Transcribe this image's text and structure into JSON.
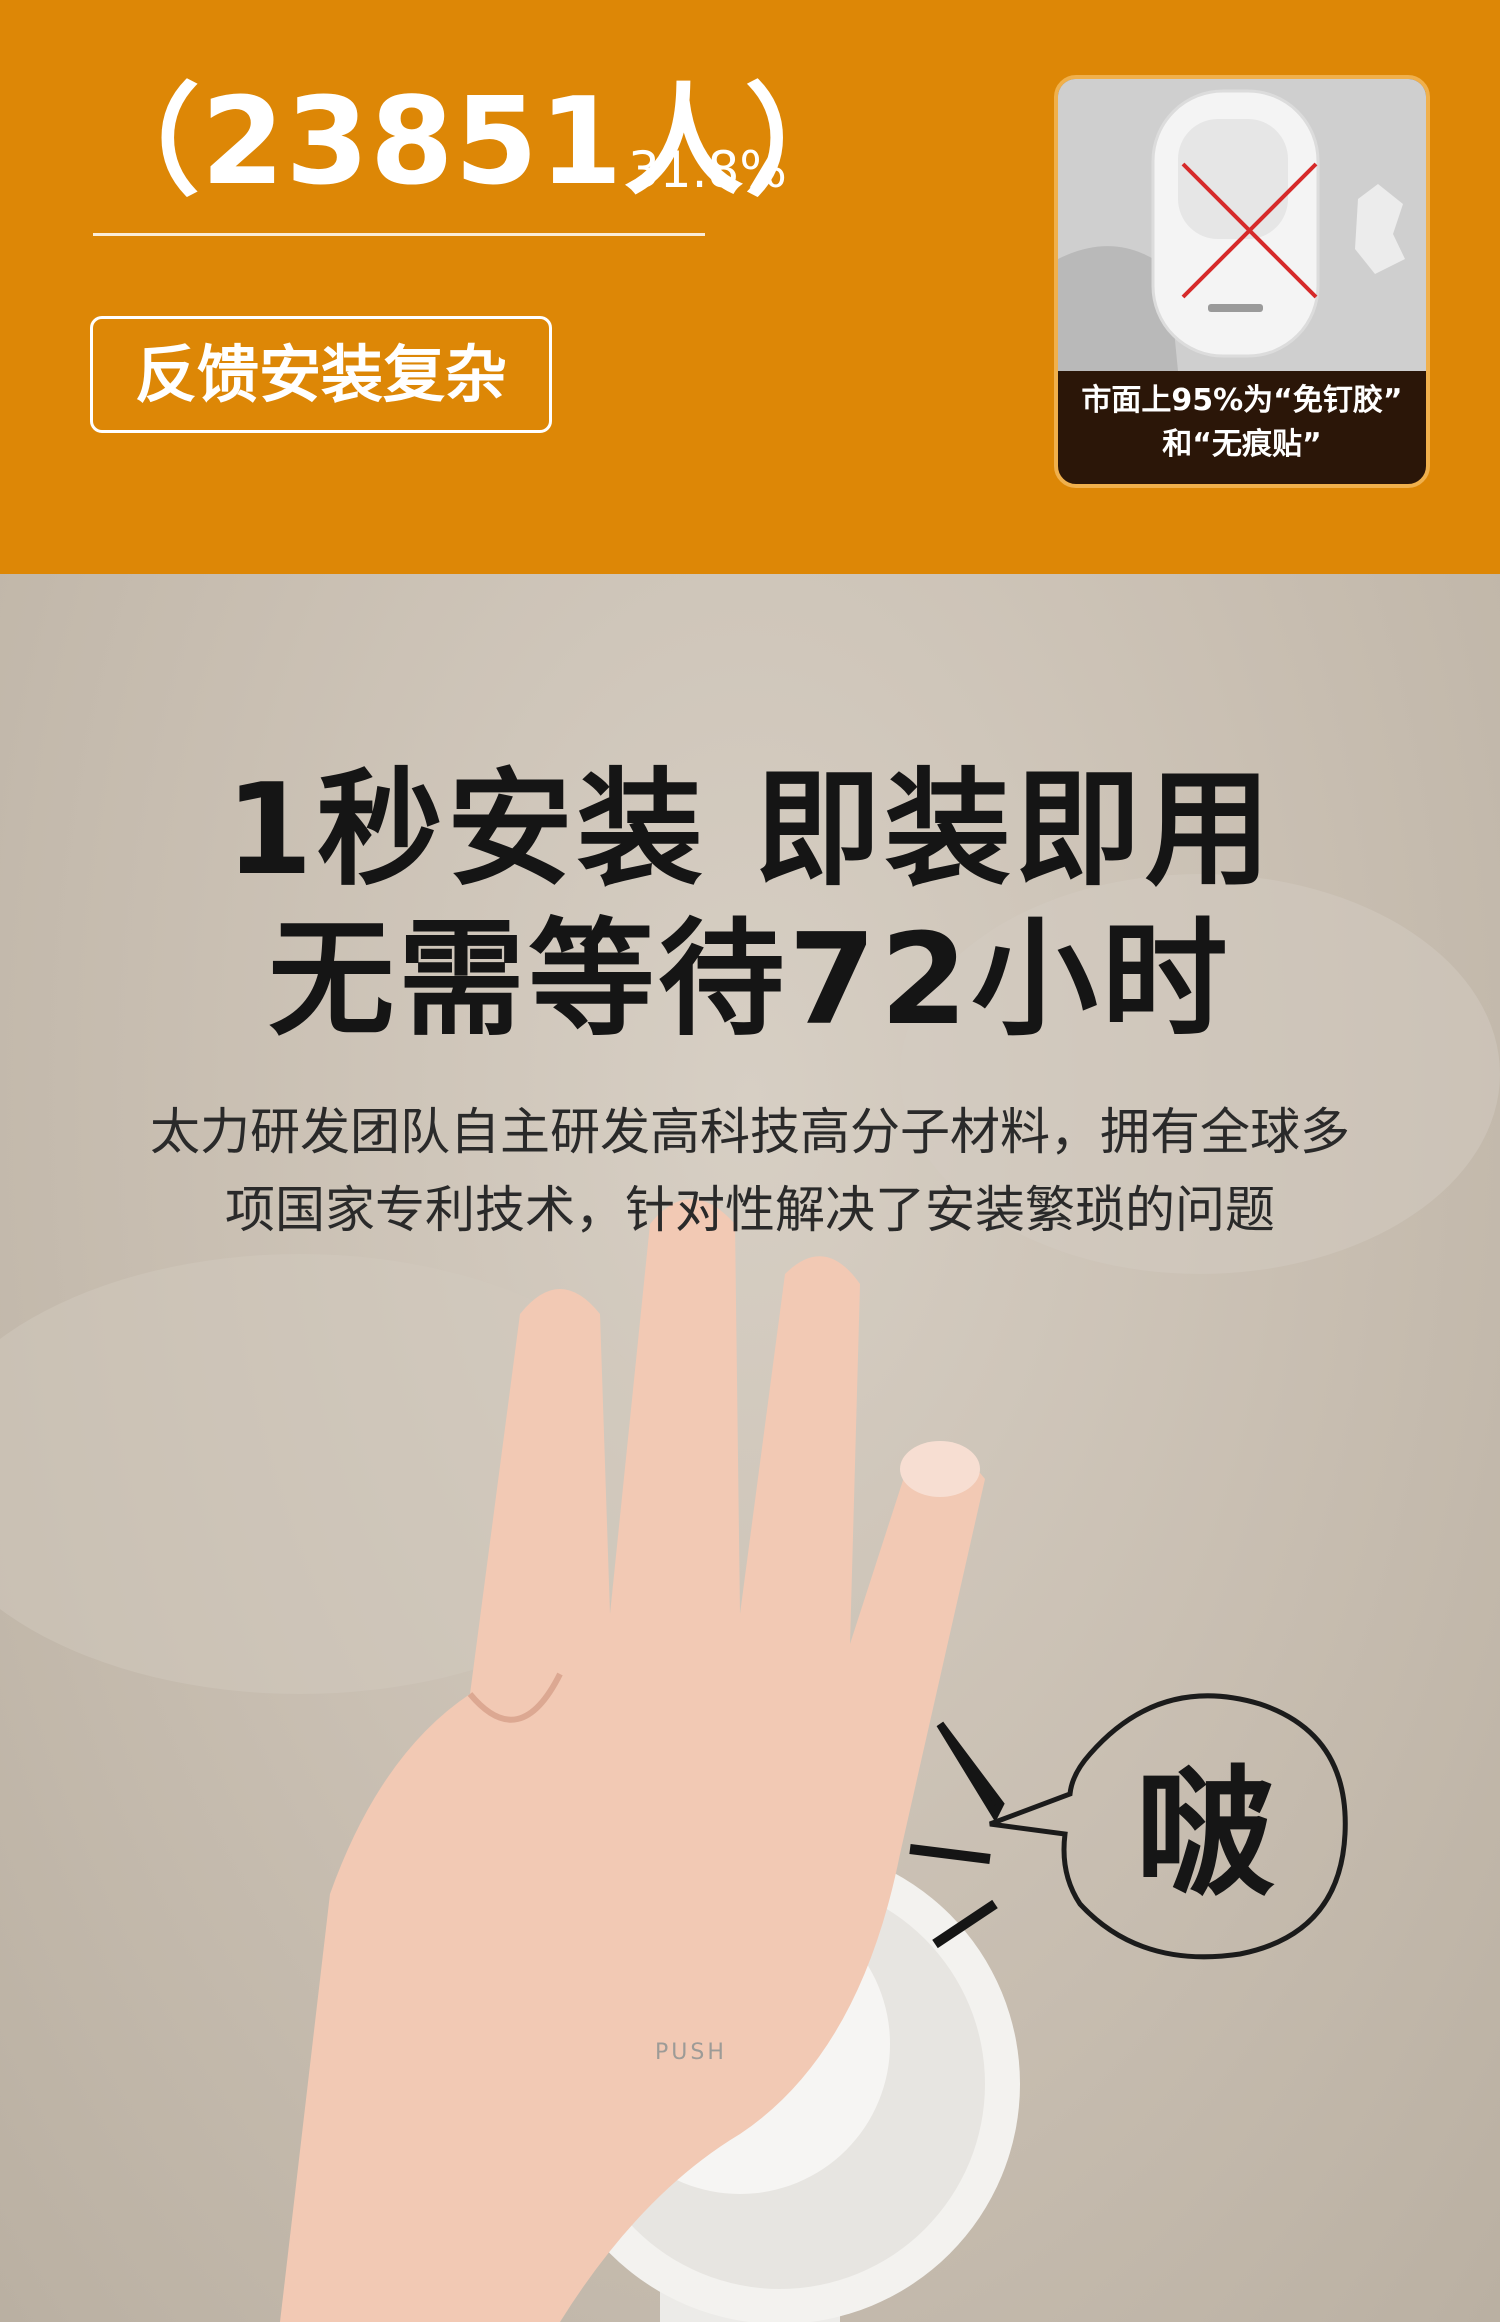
{
  "header": {
    "count_text": "（23851人）",
    "percent_text": "31.8%",
    "feedback_tag": "反馈安装复杂"
  },
  "inset_card": {
    "caption_line1": "市面上95%为“免钉胶”",
    "caption_line2": "和“无痕贴”",
    "mark_icon": "cross-icon"
  },
  "main": {
    "headline_line1": "1秒安装 即装即用",
    "headline_line2": "无需等待72小时",
    "body_line1": "太力研发团队自主研发高科技高分子材料，拥有全球多",
    "body_line2": "项国家专利技术，针对性解决了安装繁琐的问题"
  },
  "product": {
    "push_label": "PUSH",
    "sound_effect": "啵"
  },
  "colors": {
    "banner": "#dd8706",
    "card_border": "#f0b04c",
    "card_bg": "#2b1608",
    "headline": "#151515",
    "cross_mark": "#d62a2a"
  }
}
